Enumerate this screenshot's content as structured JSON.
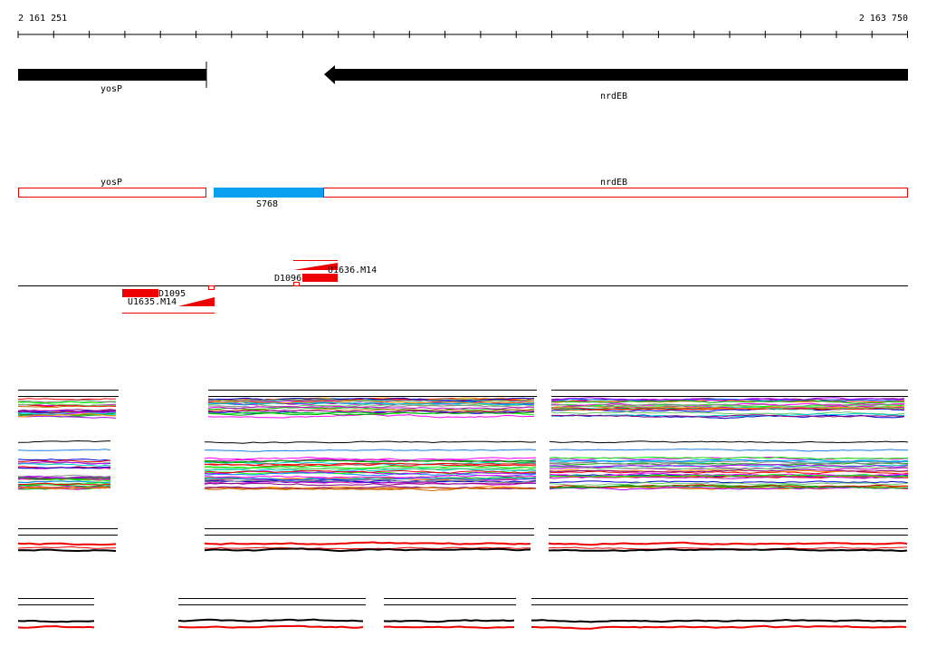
{
  "ruler": {
    "start": "2 161 251",
    "end": "2 163 750"
  },
  "genes": [
    {
      "label": "yosP"
    },
    {
      "label": "nrdEB"
    }
  ],
  "segments": [
    {
      "label": "yosP"
    },
    {
      "label": "nrdEB"
    },
    {
      "label": "S768"
    }
  ],
  "probes": [
    {
      "label": "D1096"
    },
    {
      "label": "U1636.M14"
    },
    {
      "label": "D1095"
    },
    {
      "label": "U1635.M14"
    }
  ]
}
